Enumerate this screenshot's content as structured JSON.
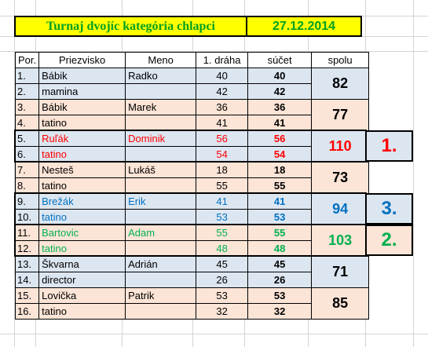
{
  "header": {
    "title": "Turnaj dvojíc kategória chlapci",
    "date": "27.12.2014"
  },
  "columns": [
    "Por.",
    "Priezvisko",
    "Meno",
    "1. dráha",
    "súčet",
    "spolu"
  ],
  "colors": {
    "blue_bg": "#dce6f1",
    "peach_bg": "#fce4d6",
    "red": "#ff0000",
    "blue": "#0070c0",
    "green": "#00b050",
    "black": "#000000"
  },
  "teams": [
    {
      "bg": "#dce6f1",
      "color": "#000000",
      "total": "82",
      "rows": [
        {
          "por": "1.",
          "surname": "Bábik",
          "name": "Radko",
          "lane1": "40",
          "sum": "40"
        },
        {
          "por": "2.",
          "surname": "mamina",
          "name": "",
          "lane1": "42",
          "sum": "42"
        }
      ]
    },
    {
      "bg": "#fce4d6",
      "color": "#000000",
      "total": "77",
      "rows": [
        {
          "por": "3.",
          "surname": "Bábik",
          "name": "Marek",
          "lane1": "36",
          "sum": "36"
        },
        {
          "por": "4.",
          "surname": "tatino",
          "name": "",
          "lane1": "41",
          "sum": "41"
        }
      ]
    },
    {
      "bg": "#dce6f1",
      "color": "#ff0000",
      "total": "110",
      "rows": [
        {
          "por": "5.",
          "surname": "Ruľák",
          "name": "Dominik",
          "lane1": "56",
          "sum": "56"
        },
        {
          "por": "6.",
          "surname": "tatino",
          "name": "",
          "lane1": "54",
          "sum": "54"
        }
      ]
    },
    {
      "bg": "#fce4d6",
      "color": "#000000",
      "total": "73",
      "rows": [
        {
          "por": "7.",
          "surname": "Nesteš",
          "name": "Lukáš",
          "lane1": "18",
          "sum": "18"
        },
        {
          "por": "8.",
          "surname": "tatino",
          "name": "",
          "lane1": "55",
          "sum": "55"
        }
      ]
    },
    {
      "bg": "#dce6f1",
      "color": "#0070c0",
      "total": "94",
      "rows": [
        {
          "por": "9.",
          "surname": "Brežák",
          "name": "Erik",
          "lane1": "41",
          "sum": "41"
        },
        {
          "por": "10.",
          "surname": "tatino",
          "name": "",
          "lane1": "53",
          "sum": "53"
        }
      ]
    },
    {
      "bg": "#fce4d6",
      "color": "#00b050",
      "total": "103",
      "rows": [
        {
          "por": "11.",
          "surname": "Bartovic",
          "name": "Adam",
          "lane1": "55",
          "sum": "55"
        },
        {
          "por": "12.",
          "surname": "tatino",
          "name": "",
          "lane1": "48",
          "sum": "48"
        }
      ]
    },
    {
      "bg": "#dce6f1",
      "color": "#000000",
      "total": "71",
      "rows": [
        {
          "por": "13.",
          "surname": "Škvarna",
          "name": "Adrián",
          "lane1": "45",
          "sum": "45"
        },
        {
          "por": "14.",
          "surname": "director",
          "name": "",
          "lane1": "26",
          "sum": "26"
        }
      ]
    },
    {
      "bg": "#fce4d6",
      "color": "#000000",
      "total": "85",
      "rows": [
        {
          "por": "15.",
          "surname": "Lovička",
          "name": "Patrik",
          "lane1": "53",
          "sum": "53"
        },
        {
          "por": "16.",
          "surname": "tatino",
          "name": "",
          "lane1": "32",
          "sum": "32"
        }
      ]
    }
  ],
  "medals": [
    {
      "label": "1.",
      "team_index": 2,
      "color": "#ff0000",
      "bg": "#dce6f1"
    },
    {
      "label": "3.",
      "team_index": 4,
      "color": "#0070c0",
      "bg": "#dce6f1"
    },
    {
      "label": "2.",
      "team_index": 5,
      "color": "#00b050",
      "bg": "#fce4d6"
    }
  ]
}
